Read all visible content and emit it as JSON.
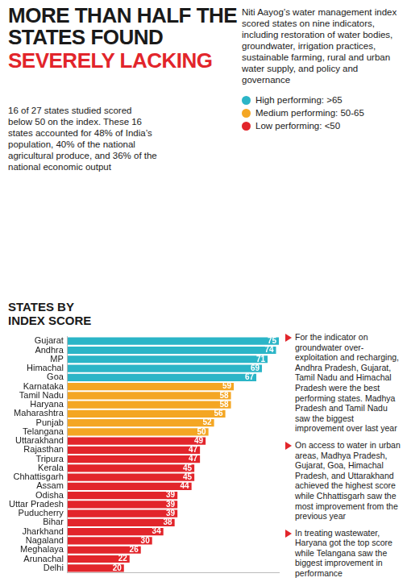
{
  "chart_data": {
    "type": "bar",
    "orientation": "horizontal",
    "title": "MORE THAN HALF THE STATES FOUND",
    "subtitle": "SEVERELY LACKING",
    "description": "Niti Aayog’s water management index scored states on nine indicators, including restoration of water bodies, groundwater, irrigation practices, sustainable farming, rural and urban water supply, and policy and governance",
    "summary": "16 of 27 states studied scored below 50 on the index. These 16 states accounted for 48% of India’s population, 40% of the national agricultural produce, and 36% of the national economic output",
    "legend_items": [
      {
        "name": "High performing: >65",
        "color": "#2bb5c7"
      },
      {
        "name": "Medium performing: 50-65",
        "color": "#f4a623"
      },
      {
        "name": "Low performing: <50",
        "color": "#e2252b"
      }
    ],
    "y_label": "STATES BY INDEX SCORE",
    "categories": [
      "Gujarat",
      "Andhra",
      "MP",
      "Himachal",
      "Goa",
      "Karnataka",
      "Tamil Nadu",
      "Haryana",
      "Maharashtra",
      "Punjab",
      "Telangana",
      "Uttarakhand",
      "Rajasthan",
      "Tripura",
      "Kerala",
      "Chhattisgarh",
      "Assam",
      "Odisha",
      "Uttar Pradesh",
      "Puducherry",
      "Bihar",
      "Jharkhand",
      "Nagaland",
      "Meghalaya",
      "Arunachal",
      "Delhi"
    ],
    "values": [
      75,
      74,
      71,
      69,
      67,
      59,
      58,
      58,
      56,
      52,
      50,
      49,
      47,
      47,
      45,
      45,
      44,
      39,
      39,
      39,
      38,
      34,
      30,
      26,
      22,
      20
    ],
    "colors": [
      "#2bb5c7",
      "#2bb5c7",
      "#2bb5c7",
      "#2bb5c7",
      "#2bb5c7",
      "#f4a623",
      "#f4a623",
      "#f4a623",
      "#f4a623",
      "#f4a623",
      "#f4a623",
      "#e2252b",
      "#e2252b",
      "#e2252b",
      "#e2252b",
      "#e2252b",
      "#e2252b",
      "#e2252b",
      "#e2252b",
      "#e2252b",
      "#e2252b",
      "#e2252b",
      "#e2252b",
      "#e2252b",
      "#e2252b",
      "#e2252b"
    ],
    "xlim": [
      0,
      75
    ],
    "tick_labels": "y",
    "grid": false,
    "data_labels": true,
    "annotations": [
      "For the indicator on groundwater over-exploitation and recharging, Andhra Pradesh, Gujarat, Tamil Nadu and Himachal Pradesh were the best performing states. Madhya Pradesh and Tamil Nadu saw the biggest improvement over last year",
      "On access to water in urban areas, Madhya Pradesh, Gujarat, Goa, Himachal Pradesh, and Uttarakhand achieved the highest score while Chhattisgarh saw the most improvement from the previous year",
      "In treating wastewater, Haryana got the top score while Telangana saw the biggest improvement in performance"
    ]
  }
}
